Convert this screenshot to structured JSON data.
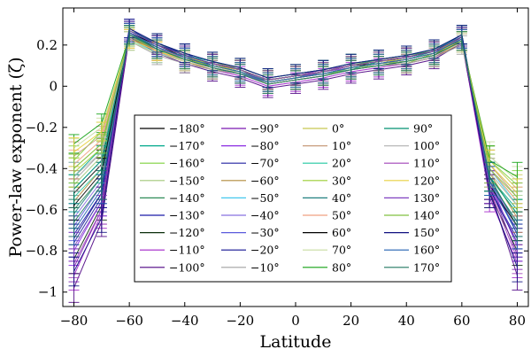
{
  "chart_data": {
    "type": "line",
    "xlabel": "Latitude",
    "ylabel": "Power-law exponent (ζ)",
    "xlim": [
      -84,
      84
    ],
    "ylim": [
      -1.07,
      0.38
    ],
    "x_ticks": [
      -80,
      -60,
      -40,
      -20,
      0,
      20,
      40,
      60,
      80
    ],
    "x_tick_labels": [
      "−80",
      "−60",
      "−40",
      "−20",
      "0",
      "20",
      "40",
      "60",
      "80"
    ],
    "y_ticks": [
      0.2,
      0,
      -0.2,
      -0.4,
      -0.6,
      -0.8,
      -1
    ],
    "y_tick_labels": [
      "0.2",
      "0",
      "−0.2",
      "−0.4",
      "−0.6",
      "−0.8",
      "−1"
    ],
    "grid": false,
    "error_bars": true,
    "legend_placement": "inside, lower-center, 4 columns",
    "x": [
      -80,
      -70,
      -60,
      -50,
      -40,
      -30,
      -20,
      -10,
      0,
      10,
      20,
      30,
      40,
      50,
      60,
      70,
      80
    ],
    "series": [
      {
        "name": "−180°",
        "color": "#000000",
        "values": [
          -0.52,
          -0.38,
          0.26,
          0.2,
          0.14,
          0.1,
          0.08,
          0.02,
          0.04,
          0.07,
          0.1,
          0.11,
          0.12,
          0.15,
          0.24,
          -0.48,
          -0.7
        ]
      },
      {
        "name": "−170°",
        "color": "#00a88a",
        "values": [
          -0.44,
          -0.3,
          0.24,
          0.17,
          0.15,
          0.09,
          0.06,
          0.03,
          0.05,
          0.06,
          0.08,
          0.12,
          0.13,
          0.17,
          0.22,
          -0.44,
          -0.6
        ]
      },
      {
        "name": "−160°",
        "color": "#7fd13b",
        "values": [
          -0.36,
          -0.22,
          0.22,
          0.16,
          0.12,
          0.08,
          0.07,
          0.01,
          0.03,
          0.05,
          0.09,
          0.1,
          0.11,
          0.16,
          0.21,
          -0.36,
          -0.48
        ]
      },
      {
        "name": "−150°",
        "color": "#a0c878",
        "values": [
          -0.48,
          -0.34,
          0.25,
          0.19,
          0.13,
          0.11,
          0.09,
          0.04,
          0.06,
          0.08,
          0.11,
          0.12,
          0.14,
          0.18,
          0.23,
          -0.4,
          -0.56
        ]
      },
      {
        "name": "−140°",
        "color": "#2e8b57",
        "values": [
          -0.6,
          -0.44,
          0.27,
          0.21,
          0.15,
          0.12,
          0.08,
          0.03,
          0.05,
          0.07,
          0.1,
          0.13,
          0.15,
          0.17,
          0.25,
          -0.46,
          -0.66
        ]
      },
      {
        "name": "−130°",
        "color": "#1a1aa6",
        "values": [
          -0.72,
          -0.52,
          0.28,
          0.2,
          0.16,
          0.1,
          0.07,
          0.02,
          0.04,
          0.06,
          0.09,
          0.11,
          0.13,
          0.16,
          0.24,
          -0.5,
          -0.74
        ]
      },
      {
        "name": "−120°",
        "color": "#0b2e0b",
        "values": [
          -0.84,
          -0.58,
          0.26,
          0.18,
          0.14,
          0.09,
          0.06,
          0.01,
          0.03,
          0.05,
          0.08,
          0.1,
          0.12,
          0.15,
          0.23,
          -0.52,
          -0.8
        ]
      },
      {
        "name": "−110°",
        "color": "#a020c8",
        "values": [
          -0.92,
          -0.62,
          0.25,
          0.17,
          0.12,
          0.08,
          0.05,
          0.0,
          0.02,
          0.04,
          0.07,
          0.09,
          0.11,
          0.14,
          0.22,
          -0.54,
          -0.86
        ]
      },
      {
        "name": "−100°",
        "color": "#4b0082",
        "values": [
          -0.98,
          -0.66,
          0.24,
          0.16,
          0.11,
          0.07,
          0.04,
          -0.01,
          0.01,
          0.03,
          0.06,
          0.08,
          0.1,
          0.13,
          0.21,
          -0.5,
          -0.92
        ]
      },
      {
        "name": "−90°",
        "color": "#7a18b0",
        "values": [
          -0.88,
          -0.6,
          0.27,
          0.2,
          0.15,
          0.11,
          0.08,
          0.03,
          0.05,
          0.08,
          0.1,
          0.12,
          0.14,
          0.17,
          0.24,
          -0.48,
          -0.82
        ]
      },
      {
        "name": "−80°",
        "color": "#8a2be2",
        "values": [
          -0.8,
          -0.56,
          0.26,
          0.19,
          0.14,
          0.1,
          0.07,
          0.02,
          0.04,
          0.07,
          0.09,
          0.11,
          0.13,
          0.16,
          0.23,
          -0.46,
          -0.78
        ]
      },
      {
        "name": "−70°",
        "color": "#2020a0",
        "values": [
          -0.76,
          -0.54,
          0.25,
          0.18,
          0.13,
          0.09,
          0.06,
          0.02,
          0.04,
          0.06,
          0.09,
          0.11,
          0.12,
          0.15,
          0.22,
          -0.44,
          -0.72
        ]
      },
      {
        "name": "−60°",
        "color": "#b08a3c",
        "values": [
          -0.56,
          -0.4,
          0.24,
          0.17,
          0.12,
          0.08,
          0.06,
          0.01,
          0.03,
          0.05,
          0.08,
          0.1,
          0.11,
          0.14,
          0.21,
          -0.42,
          -0.64
        ]
      },
      {
        "name": "−50°",
        "color": "#44c8ee",
        "values": [
          -0.5,
          -0.36,
          0.23,
          0.16,
          0.13,
          0.09,
          0.07,
          0.02,
          0.04,
          0.06,
          0.09,
          0.11,
          0.12,
          0.15,
          0.22,
          -0.4,
          -0.58
        ]
      },
      {
        "name": "−40°",
        "color": "#8870e0",
        "values": [
          -0.64,
          -0.46,
          0.25,
          0.18,
          0.14,
          0.1,
          0.07,
          0.03,
          0.05,
          0.07,
          0.1,
          0.12,
          0.13,
          0.16,
          0.23,
          -0.46,
          -0.68
        ]
      },
      {
        "name": "−30°",
        "color": "#5a5adc",
        "values": [
          -0.68,
          -0.48,
          0.26,
          0.19,
          0.13,
          0.09,
          0.06,
          0.02,
          0.04,
          0.06,
          0.09,
          0.11,
          0.13,
          0.16,
          0.24,
          -0.48,
          -0.7
        ]
      },
      {
        "name": "−20°",
        "color": "#101090",
        "values": [
          -0.74,
          -0.52,
          0.27,
          0.2,
          0.15,
          0.11,
          0.08,
          0.03,
          0.05,
          0.07,
          0.1,
          0.12,
          0.14,
          0.17,
          0.25,
          -0.5,
          -0.76
        ]
      },
      {
        "name": "−10°",
        "color": "#a0a0a0",
        "values": [
          -0.46,
          -0.32,
          0.22,
          0.15,
          0.11,
          0.08,
          0.06,
          0.01,
          0.03,
          0.05,
          0.08,
          0.1,
          0.11,
          0.14,
          0.2,
          -0.38,
          -0.52
        ]
      },
      {
        "name": "0°",
        "color": "#c8c850",
        "values": [
          -0.4,
          -0.28,
          0.23,
          0.17,
          0.13,
          0.1,
          0.08,
          0.03,
          0.05,
          0.07,
          0.1,
          0.12,
          0.13,
          0.16,
          0.22,
          -0.36,
          -0.5
        ]
      },
      {
        "name": "10°",
        "color": "#c89c7c",
        "values": [
          -0.34,
          -0.24,
          0.24,
          0.18,
          0.14,
          0.11,
          0.09,
          0.04,
          0.06,
          0.08,
          0.11,
          0.13,
          0.14,
          0.17,
          0.23,
          -0.38,
          -0.54
        ]
      },
      {
        "name": "20°",
        "color": "#20c8a0",
        "values": [
          -0.54,
          -0.4,
          0.26,
          0.2,
          0.15,
          0.12,
          0.09,
          0.04,
          0.06,
          0.08,
          0.11,
          0.13,
          0.15,
          0.18,
          0.24,
          -0.44,
          -0.62
        ]
      },
      {
        "name": "30°",
        "color": "#9acd32",
        "values": [
          -0.42,
          -0.3,
          0.25,
          0.19,
          0.14,
          0.11,
          0.08,
          0.03,
          0.05,
          0.07,
          0.1,
          0.12,
          0.14,
          0.17,
          0.23,
          -0.42,
          -0.58
        ]
      },
      {
        "name": "40°",
        "color": "#208080",
        "values": [
          -0.62,
          -0.44,
          0.27,
          0.21,
          0.16,
          0.12,
          0.09,
          0.04,
          0.06,
          0.08,
          0.11,
          0.13,
          0.15,
          0.18,
          0.25,
          -0.46,
          -0.66
        ]
      },
      {
        "name": "50°",
        "color": "#f0a080",
        "values": [
          -0.38,
          -0.26,
          0.23,
          0.17,
          0.12,
          0.09,
          0.07,
          0.02,
          0.04,
          0.06,
          0.09,
          0.11,
          0.12,
          0.15,
          0.21,
          -0.4,
          -0.56
        ]
      },
      {
        "name": "60°",
        "color": "#000000",
        "values": [
          -0.58,
          -0.42,
          0.26,
          0.2,
          0.15,
          0.11,
          0.08,
          0.03,
          0.05,
          0.07,
          0.1,
          0.12,
          0.14,
          0.17,
          0.24,
          -0.48,
          -0.68
        ]
      },
      {
        "name": "70°",
        "color": "#c8dca0",
        "values": [
          -0.3,
          -0.2,
          0.22,
          0.16,
          0.12,
          0.09,
          0.07,
          0.02,
          0.04,
          0.06,
          0.09,
          0.11,
          0.12,
          0.15,
          0.21,
          -0.34,
          -0.46
        ]
      },
      {
        "name": "80°",
        "color": "#10a010",
        "values": [
          -0.28,
          -0.18,
          0.24,
          0.18,
          0.13,
          0.1,
          0.08,
          0.03,
          0.05,
          0.07,
          0.1,
          0.12,
          0.13,
          0.16,
          0.22,
          -0.36,
          -0.44
        ]
      },
      {
        "name": "90°",
        "color": "#009070",
        "values": [
          -0.5,
          -0.36,
          0.25,
          0.19,
          0.14,
          0.1,
          0.07,
          0.02,
          0.04,
          0.06,
          0.09,
          0.11,
          0.13,
          0.16,
          0.23,
          -0.44,
          -0.62
        ]
      },
      {
        "name": "100°",
        "color": "#b8b8b8",
        "values": [
          -0.44,
          -0.32,
          0.24,
          0.18,
          0.13,
          0.1,
          0.07,
          0.02,
          0.04,
          0.06,
          0.09,
          0.11,
          0.12,
          0.15,
          0.22,
          -0.42,
          -0.58
        ]
      },
      {
        "name": "110°",
        "color": "#a040b8",
        "values": [
          -0.86,
          -0.6,
          0.26,
          0.19,
          0.14,
          0.1,
          0.07,
          0.02,
          0.04,
          0.06,
          0.09,
          0.11,
          0.13,
          0.16,
          0.23,
          -0.5,
          -0.84
        ]
      },
      {
        "name": "120°",
        "color": "#e8d040",
        "values": [
          -0.32,
          -0.22,
          0.23,
          0.17,
          0.13,
          0.1,
          0.08,
          0.03,
          0.05,
          0.07,
          0.1,
          0.12,
          0.13,
          0.16,
          0.22,
          -0.38,
          -0.52
        ]
      },
      {
        "name": "130°",
        "color": "#8040c0",
        "values": [
          -0.78,
          -0.56,
          0.27,
          0.2,
          0.15,
          0.11,
          0.08,
          0.03,
          0.05,
          0.07,
          0.1,
          0.12,
          0.14,
          0.17,
          0.24,
          -0.48,
          -0.76
        ]
      },
      {
        "name": "140°",
        "color": "#80c040",
        "values": [
          -0.4,
          -0.28,
          0.24,
          0.18,
          0.13,
          0.1,
          0.07,
          0.02,
          0.04,
          0.06,
          0.09,
          0.11,
          0.12,
          0.15,
          0.22,
          -0.4,
          -0.54
        ]
      },
      {
        "name": "150°",
        "color": "#101080",
        "values": [
          -0.9,
          -0.64,
          0.28,
          0.21,
          0.16,
          0.12,
          0.09,
          0.04,
          0.06,
          0.08,
          0.11,
          0.13,
          0.15,
          0.18,
          0.25,
          -0.52,
          -0.88
        ]
      },
      {
        "name": "160°",
        "color": "#2060b0",
        "values": [
          -0.7,
          -0.5,
          0.26,
          0.19,
          0.14,
          0.1,
          0.07,
          0.02,
          0.04,
          0.06,
          0.09,
          0.11,
          0.13,
          0.16,
          0.23,
          -0.46,
          -0.72
        ]
      },
      {
        "name": "170°",
        "color": "#207860",
        "values": [
          -0.66,
          -0.48,
          0.25,
          0.18,
          0.13,
          0.09,
          0.06,
          0.01,
          0.03,
          0.05,
          0.08,
          0.1,
          0.12,
          0.15,
          0.22,
          -0.44,
          -0.68
        ]
      }
    ]
  }
}
